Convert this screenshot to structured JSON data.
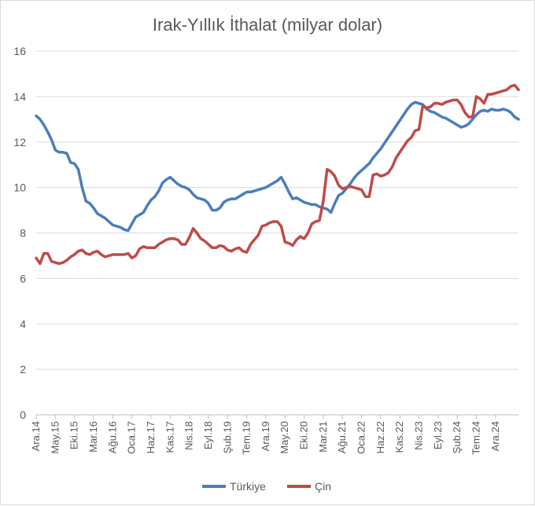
{
  "chart_data": {
    "type": "line",
    "title": "Irak-Yıllık İthalat (milyar dolar)",
    "xlabel": "",
    "ylabel": "",
    "ylim": [
      0,
      16
    ],
    "yticks": [
      0,
      2,
      4,
      6,
      8,
      10,
      12,
      14,
      16
    ],
    "grid": true,
    "legend_position": "bottom",
    "x_tick_labels": [
      "Ara.14",
      "May.15",
      "Eki.15",
      "Mar.16",
      "Ağu.16",
      "Oca.17",
      "Haz.17",
      "Kas.17",
      "Nis.18",
      "Eyl.18",
      "Şub.19",
      "Tem.19",
      "Ara.19",
      "May.20",
      "Eki.20",
      "Mar.21",
      "Ağu.21",
      "Oca.22",
      "Haz.22",
      "Kas.22",
      "Nis.23",
      "Eyl.23",
      "Şub.24",
      "Tem.24",
      "Ara.24"
    ],
    "x_start": "2014-12",
    "x_end": "2024-12",
    "series": [
      {
        "name": "Türkiye",
        "color": "#4a7ebb",
        "values": [
          13.15,
          13.0,
          12.75,
          12.45,
          12.1,
          11.65,
          11.55,
          11.55,
          11.5,
          11.1,
          11.05,
          10.8,
          10.0,
          9.4,
          9.3,
          9.1,
          8.85,
          8.75,
          8.65,
          8.5,
          8.35,
          8.3,
          8.25,
          8.15,
          8.1,
          8.4,
          8.7,
          8.8,
          8.9,
          9.2,
          9.45,
          9.6,
          9.85,
          10.2,
          10.35,
          10.45,
          10.3,
          10.15,
          10.05,
          10.0,
          9.9,
          9.7,
          9.55,
          9.5,
          9.45,
          9.3,
          9.0,
          9.0,
          9.1,
          9.35,
          9.45,
          9.5,
          9.5,
          9.6,
          9.7,
          9.8,
          9.8,
          9.85,
          9.9,
          9.95,
          10.0,
          10.1,
          10.2,
          10.3,
          10.45,
          10.15,
          9.8,
          9.5,
          9.55,
          9.45,
          9.35,
          9.3,
          9.25,
          9.25,
          9.15,
          9.1,
          9.05,
          8.9,
          9.3,
          9.65,
          9.75,
          9.95,
          10.15,
          10.4,
          10.6,
          10.75,
          10.9,
          11.05,
          11.3,
          11.5,
          11.7,
          11.95,
          12.2,
          12.45,
          12.7,
          12.95,
          13.2,
          13.45,
          13.65,
          13.75,
          13.7,
          13.65,
          13.45,
          13.35,
          13.3,
          13.2,
          13.1,
          13.05,
          12.95,
          12.85,
          12.75,
          12.65,
          12.7,
          12.8,
          13.0,
          13.2,
          13.35,
          13.4,
          13.35,
          13.45,
          13.4,
          13.4,
          13.45,
          13.4,
          13.3,
          13.1,
          13.0
        ]
      },
      {
        "name": "Çin",
        "color": "#be4b48",
        "values": [
          6.9,
          6.65,
          7.1,
          7.1,
          6.75,
          6.7,
          6.65,
          6.7,
          6.8,
          6.95,
          7.05,
          7.2,
          7.25,
          7.1,
          7.05,
          7.15,
          7.2,
          7.05,
          6.95,
          7.0,
          7.05,
          7.05,
          7.05,
          7.05,
          7.1,
          6.9,
          7.0,
          7.3,
          7.4,
          7.35,
          7.35,
          7.35,
          7.5,
          7.6,
          7.7,
          7.75,
          7.75,
          7.7,
          7.5,
          7.5,
          7.8,
          8.2,
          8.0,
          7.75,
          7.65,
          7.5,
          7.35,
          7.35,
          7.45,
          7.4,
          7.25,
          7.2,
          7.3,
          7.35,
          7.2,
          7.15,
          7.5,
          7.7,
          7.9,
          8.3,
          8.35,
          8.45,
          8.5,
          8.5,
          8.3,
          7.6,
          7.55,
          7.45,
          7.7,
          7.85,
          7.75,
          8.0,
          8.4,
          8.5,
          8.55,
          9.4,
          10.8,
          10.7,
          10.5,
          10.1,
          9.95,
          10.0,
          10.05,
          10.0,
          9.95,
          9.9,
          9.6,
          9.6,
          10.55,
          10.6,
          10.5,
          10.55,
          10.65,
          10.9,
          11.3,
          11.55,
          11.8,
          12.05,
          12.2,
          12.5,
          12.55,
          13.6,
          13.5,
          13.55,
          13.7,
          13.7,
          13.65,
          13.75,
          13.8,
          13.85,
          13.85,
          13.65,
          13.3,
          13.1,
          13.1,
          14.0,
          13.9,
          13.7,
          14.1,
          14.1,
          14.15,
          14.2,
          14.25,
          14.3,
          14.45,
          14.5,
          14.3
        ]
      }
    ]
  }
}
